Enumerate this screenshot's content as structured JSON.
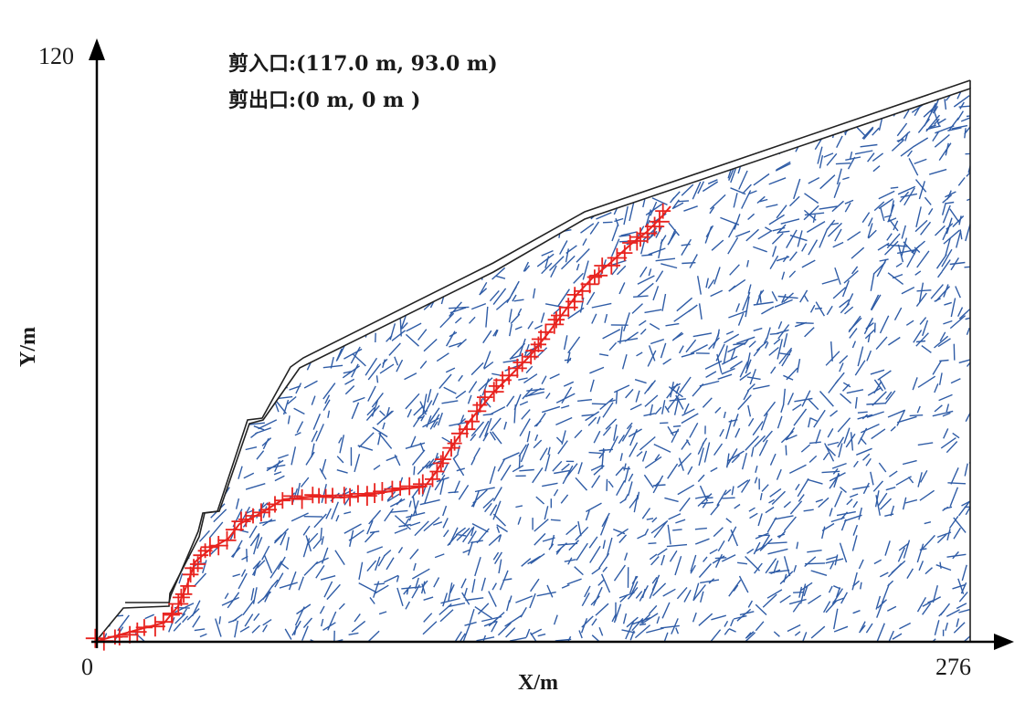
{
  "figure": {
    "entry_label": "剪入口:(117.0 m, 93.0 m)",
    "exit_label": "剪出口:(0 m, 0 m )",
    "x_axis_label": "X/m",
    "y_axis_label": "Y/m",
    "x_min_label": "0",
    "x_max_label": "276",
    "y_max_label": "120"
  },
  "colors": {
    "fracture": "#2f5ca6",
    "slip_marker": "#e8231f",
    "outline": "#222222"
  },
  "icons": [
    "x-axis-arrow-icon",
    "y-axis-arrow-icon",
    "slip-point-cross-icon"
  ]
}
